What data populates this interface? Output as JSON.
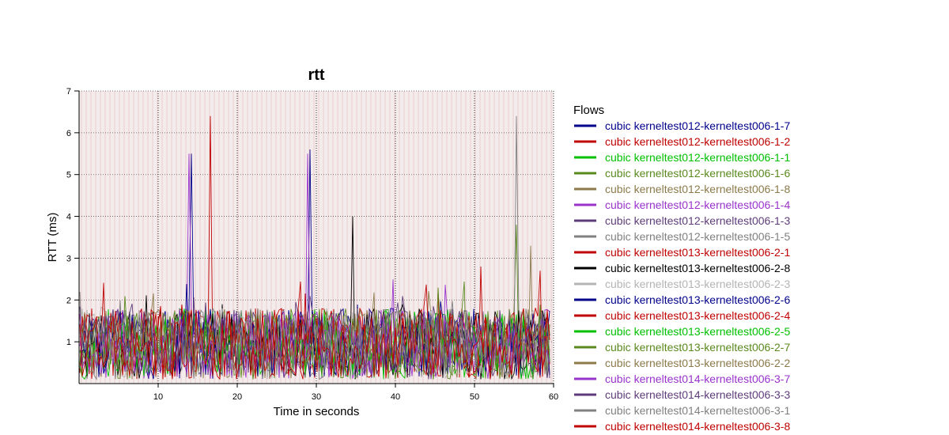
{
  "chart_data": {
    "type": "line",
    "title": "rtt",
    "xlabel": "Time in seconds",
    "ylabel": "RTT (ms)",
    "xlim": [
      0,
      60
    ],
    "ylim": [
      0,
      7
    ],
    "x_ticks": [
      10,
      20,
      30,
      40,
      50,
      60
    ],
    "y_ticks": [
      1,
      2,
      3,
      4,
      5,
      6,
      7
    ],
    "grid": "dotted gridlines at every tick; vertical line at 20 and 30",
    "legend_title": "Flows",
    "legend_position": "right",
    "series": [
      {
        "name": "cubic kerneltest012-kerneltest006-1-7",
        "color": "#00008b",
        "peaks": [
          [
            14.1,
            5.5
          ],
          [
            29.1,
            5.6
          ]
        ]
      },
      {
        "name": "cubic kerneltest012-kerneltest006-1-2",
        "color": "#c00000",
        "peaks": [
          [
            16.7,
            6.4
          ]
        ]
      },
      {
        "name": "cubic kerneltest012-kerneltest006-1-1",
        "color": "#00c000",
        "peaks": []
      },
      {
        "name": "cubic kerneltest012-kerneltest006-1-6",
        "color": "#5a8a1e",
        "peaks": [
          [
            55.2,
            3.8
          ]
        ]
      },
      {
        "name": "cubic kerneltest012-kerneltest006-1-8",
        "color": "#8c7a4a",
        "peaks": [
          [
            57.0,
            3.3
          ]
        ]
      },
      {
        "name": "cubic kerneltest012-kerneltest006-1-4",
        "color": "#9933cc",
        "peaks": [
          [
            14.0,
            5.5
          ],
          [
            29.0,
            5.5
          ]
        ]
      },
      {
        "name": "cubic kerneltest012-kerneltest006-1-3",
        "color": "#5e3c7a",
        "peaks": []
      },
      {
        "name": "cubic kerneltest012-kerneltest006-1-5",
        "color": "#808080",
        "peaks": [
          [
            55.3,
            6.4
          ]
        ]
      },
      {
        "name": "cubic kerneltest013-kerneltest006-2-1",
        "color": "#c00000",
        "peaks": [
          [
            50.8,
            2.8
          ]
        ]
      },
      {
        "name": "cubic kerneltest013-kerneltest006-2-8",
        "color": "#000000",
        "peaks": [
          [
            34.5,
            4.0
          ]
        ]
      },
      {
        "name": "cubic kerneltest013-kerneltest006-2-3",
        "color": "#b4b4b4",
        "peaks": []
      },
      {
        "name": "cubic kerneltest013-kerneltest006-2-6",
        "color": "#00008b",
        "peaks": []
      },
      {
        "name": "cubic kerneltest013-kerneltest006-2-4",
        "color": "#c00000",
        "peaks": [
          [
            58.2,
            2.7
          ]
        ]
      },
      {
        "name": "cubic kerneltest013-kerneltest006-2-5",
        "color": "#00c000",
        "peaks": []
      },
      {
        "name": "cubic kerneltest013-kerneltest006-2-7",
        "color": "#5a8a1e",
        "peaks": []
      },
      {
        "name": "cubic kerneltest013-kerneltest006-2-2",
        "color": "#8c7a4a",
        "peaks": []
      },
      {
        "name": "cubic kerneltest014-kerneltest006-3-7",
        "color": "#9933cc",
        "peaks": []
      },
      {
        "name": "cubic kerneltest014-kerneltest006-3-3",
        "color": "#5e3c7a",
        "peaks": []
      },
      {
        "name": "cubic kerneltest014-kerneltest006-3-1",
        "color": "#808080",
        "peaks": []
      },
      {
        "name": "cubic kerneltest014-kerneltest006-3-8",
        "color": "#c00000",
        "peaks": []
      }
    ],
    "baseline_band_ms": [
      0.1,
      1.8
    ]
  }
}
